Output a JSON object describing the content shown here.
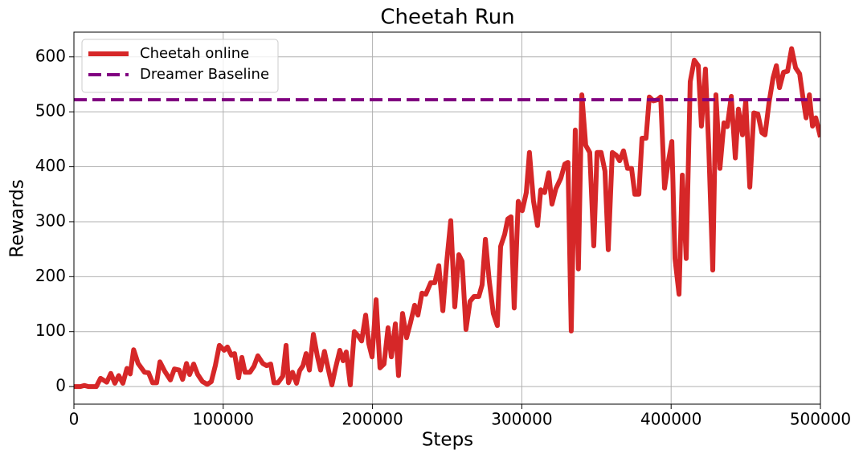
{
  "chart_data": {
    "type": "line",
    "title": "Cheetah Run",
    "x_label": "Steps",
    "y_label": "Rewards",
    "xlim": [
      0,
      500000
    ],
    "ylim": [
      -32,
      645
    ],
    "xticks": [
      0,
      100000,
      200000,
      300000,
      400000,
      500000
    ],
    "yticks": [
      0,
      100,
      200,
      300,
      400,
      500,
      600
    ],
    "grid": true,
    "legend": "upper left",
    "x": [
      0,
      4300,
      7000,
      9700,
      15000,
      17800,
      22000,
      24700,
      27400,
      30000,
      32800,
      35500,
      37700,
      40000,
      43000,
      47300,
      50000,
      52700,
      55400,
      57600,
      60800,
      64600,
      67300,
      70500,
      72800,
      75400,
      77500,
      80200,
      82900,
      86100,
      89300,
      92000,
      94700,
      97400,
      100600,
      102800,
      105500,
      107600,
      110300,
      112500,
      114600,
      117900,
      120600,
      123200,
      126500,
      129100,
      131800,
      134000,
      136700,
      139900,
      142100,
      143700,
      146400,
      149100,
      151200,
      153400,
      155500,
      157700,
      160400,
      163000,
      165200,
      167800,
      170500,
      172800,
      174900,
      178100,
      180300,
      182400,
      185100,
      187800,
      190500,
      192700,
      195400,
      197500,
      199700,
      202400,
      205000,
      207700,
      210400,
      212600,
      215300,
      217400,
      220100,
      222800,
      225500,
      228200,
      230400,
      233100,
      235700,
      239000,
      241700,
      244400,
      247100,
      249700,
      252400,
      255100,
      257800,
      260000,
      262600,
      265300,
      268000,
      271200,
      273400,
      275600,
      278200,
      280900,
      283600,
      285800,
      288500,
      290600,
      292800,
      294900,
      297600,
      300300,
      303000,
      305100,
      307800,
      310500,
      312700,
      315300,
      318000,
      320200,
      322800,
      326100,
      328800,
      330900,
      333100,
      335800,
      337900,
      340200,
      342800,
      345500,
      348200,
      350400,
      353100,
      355700,
      357900,
      360600,
      363300,
      365500,
      368100,
      370800,
      373500,
      375700,
      378400,
      380500,
      383200,
      385400,
      388100,
      390800,
      393000,
      395600,
      397800,
      400500,
      402600,
      405300,
      407500,
      410100,
      412800,
      415500,
      418200,
      420300,
      423000,
      425200,
      427900,
      430000,
      432700,
      435400,
      437600,
      440300,
      443000,
      445100,
      447800,
      450000,
      452700,
      455400,
      458100,
      460800,
      462900,
      465600,
      468300,
      470500,
      472600,
      475300,
      478000,
      480700,
      483400,
      486100,
      488200,
      490400,
      492600,
      494700,
      496900,
      500000
    ],
    "series": [
      {
        "name": "Cheetah online",
        "color": "#d62728",
        "values": [
          0,
          0,
          2,
          0,
          0,
          15,
          8,
          24,
          6,
          20,
          6,
          33,
          23,
          67,
          42,
          26,
          25,
          7,
          7,
          45,
          28,
          12,
          32,
          30,
          13,
          42,
          22,
          41,
          22,
          9,
          4,
          9,
          38,
          75,
          66,
          72,
          57,
          60,
          16,
          53,
          26,
          26,
          37,
          56,
          42,
          38,
          41,
          7,
          7,
          19,
          75,
          7,
          26,
          6,
          29,
          38,
          60,
          30,
          95,
          56,
          30,
          64,
          30,
          3,
          30,
          66,
          47,
          63,
          3,
          100,
          92,
          83,
          130,
          78,
          54,
          158,
          34,
          41,
          107,
          54,
          114,
          20,
          133,
          89,
          117,
          148,
          130,
          170,
          168,
          189,
          189,
          220,
          138,
          227,
          302,
          145,
          240,
          228,
          104,
          155,
          164,
          164,
          185,
          268,
          192,
          133,
          111,
          255,
          277,
          305,
          309,
          143,
          337,
          320,
          353,
          426,
          338,
          293,
          358,
          353,
          389,
          332,
          360,
          379,
          405,
          408,
          101,
          467,
          214,
          531,
          439,
          426,
          256,
          426,
          426,
          392,
          249,
          426,
          421,
          411,
          429,
          397,
          397,
          350,
          350,
          452,
          452,
          527,
          520,
          522,
          527,
          361,
          404,
          446,
          233,
          168,
          385,
          233,
          555,
          594,
          584,
          474,
          578,
          435,
          212,
          531,
          397,
          480,
          473,
          528,
          416,
          505,
          458,
          520,
          363,
          498,
          496,
          462,
          458,
          517,
          562,
          584,
          544,
          572,
          574,
          615,
          580,
          569,
          528,
          489,
          531,
          474,
          489,
          454
        ]
      }
    ],
    "baselines": [
      {
        "name": "Dreamer Baseline",
        "color": "#800080",
        "value": 522
      }
    ]
  }
}
